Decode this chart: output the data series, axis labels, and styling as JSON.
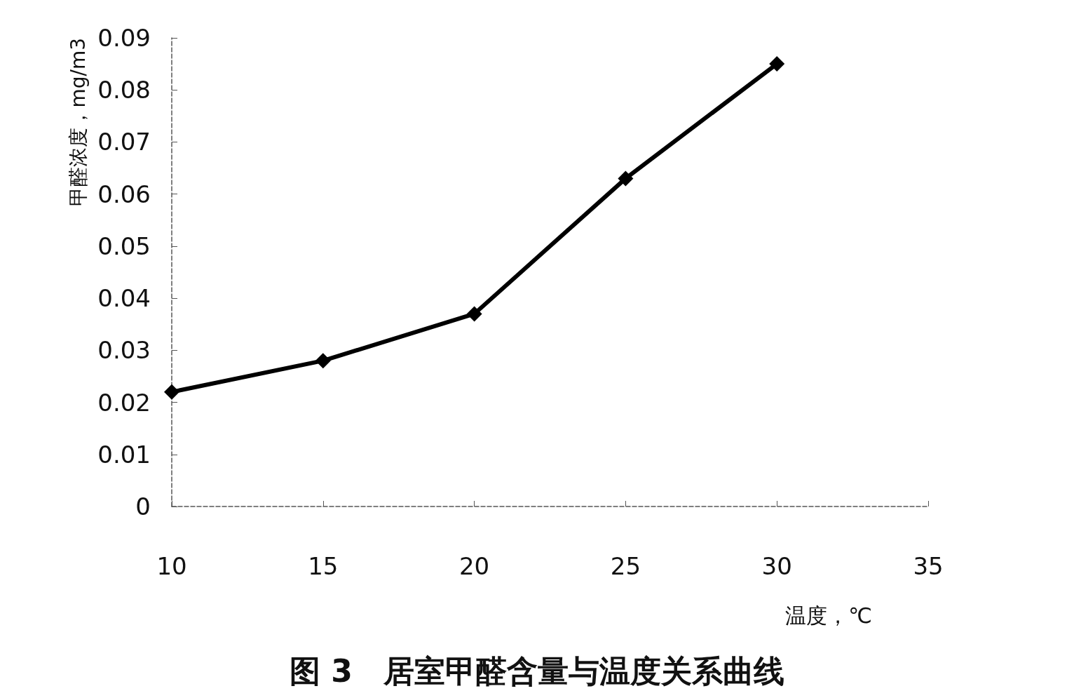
{
  "chart_data": {
    "type": "line",
    "title": "图 3　居室甲醛含量与温度关系曲线",
    "xlabel": "温度，℃",
    "ylabel": "甲醛浓度，mg/m3",
    "x": [
      10,
      15,
      20,
      25,
      30
    ],
    "series": [
      {
        "color": "#000000",
        "values": [
          0.022,
          0.028,
          0.037,
          0.063,
          0.085
        ]
      }
    ],
    "xlim": [
      10,
      35
    ],
    "xticks": [
      10,
      15,
      20,
      25,
      30,
      35
    ],
    "ylim": [
      0,
      0.09
    ],
    "yticks": [
      0,
      0.01,
      0.02,
      0.03,
      0.04,
      0.05,
      0.06,
      0.07,
      0.08,
      0.09
    ],
    "grid": false,
    "marker": "diamond",
    "line_style": "solid"
  }
}
